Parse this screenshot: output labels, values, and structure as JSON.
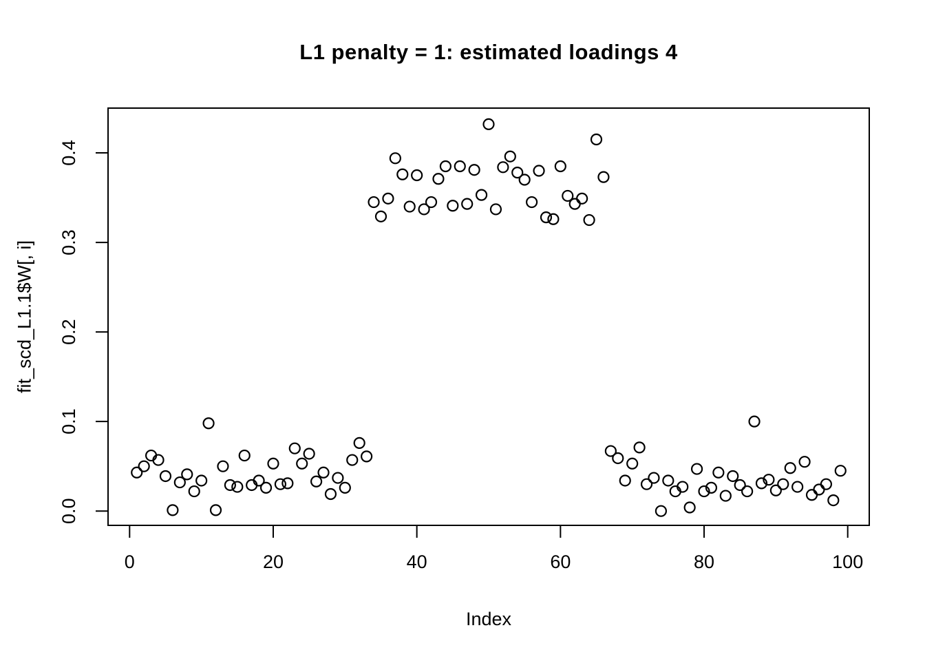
{
  "chart_data": {
    "type": "scatter",
    "title": "L1 penalty = 1: estimated loadings 4",
    "xlabel": "Index",
    "ylabel": "fit_scd_L1.1$W[, i]",
    "x_ticks": [
      0,
      20,
      40,
      60,
      80,
      100
    ],
    "y_tick_labels": [
      "0.0",
      "0.1",
      "0.2",
      "0.3",
      "0.4"
    ],
    "y_tick_values": [
      0.0,
      0.1,
      0.2,
      0.3,
      0.4
    ],
    "xlim": [
      -3,
      103
    ],
    "ylim": [
      -0.016,
      0.45
    ],
    "grid": false,
    "legend": null,
    "marker": "open-circle",
    "point_color": "#000000",
    "background_color": "#ffffff",
    "x_start": 1,
    "values": [
      0.043,
      0.05,
      0.062,
      0.057,
      0.039,
      0.001,
      0.032,
      0.041,
      0.022,
      0.034,
      0.098,
      0.001,
      0.05,
      0.029,
      0.027,
      0.062,
      0.029,
      0.034,
      0.026,
      0.053,
      0.03,
      0.031,
      0.07,
      0.053,
      0.064,
      0.033,
      0.043,
      0.019,
      0.037,
      0.026,
      0.057,
      0.076,
      0.061,
      0.345,
      0.329,
      0.349,
      0.394,
      0.376,
      0.34,
      0.375,
      0.337,
      0.345,
      0.371,
      0.385,
      0.341,
      0.385,
      0.343,
      0.381,
      0.353,
      0.432,
      0.337,
      0.384,
      0.396,
      0.378,
      0.37,
      0.345,
      0.38,
      0.328,
      0.326,
      0.385,
      0.352,
      0.343,
      0.349,
      0.325,
      0.415,
      0.373,
      0.067,
      0.059,
      0.034,
      0.053,
      0.071,
      0.03,
      0.037,
      0.0,
      0.034,
      0.022,
      0.027,
      0.004,
      0.047,
      0.022,
      0.026,
      0.043,
      0.017,
      0.039,
      0.029,
      0.022,
      0.1,
      0.031,
      0.035,
      0.023,
      0.03,
      0.048,
      0.027,
      0.055,
      0.018,
      0.024,
      0.03,
      0.012,
      0.045
    ]
  }
}
